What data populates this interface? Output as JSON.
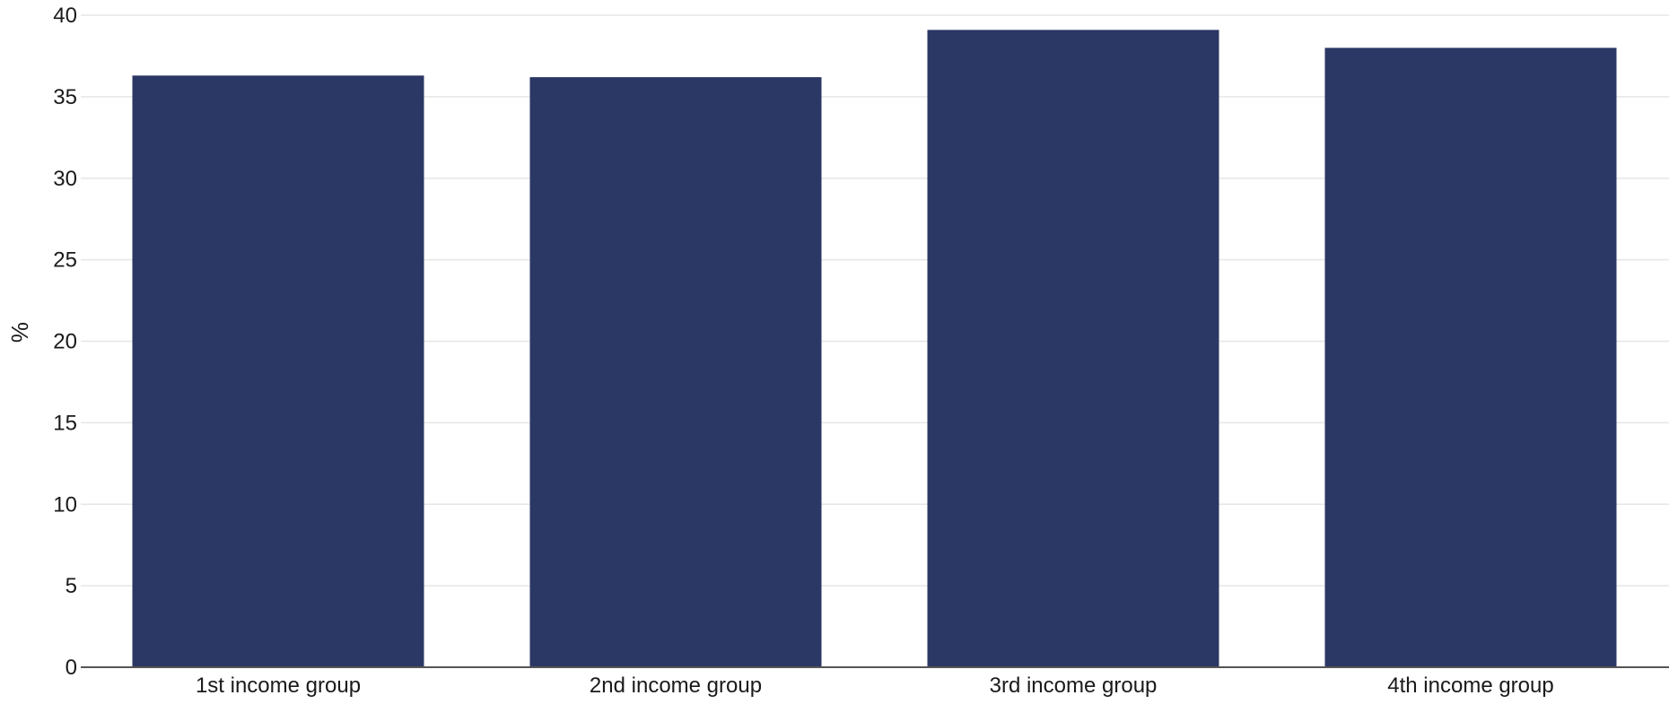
{
  "chart_data": {
    "type": "bar",
    "categories": [
      "1st income group",
      "2nd income group",
      "3rd income group",
      "4th income group"
    ],
    "values": [
      36.3,
      36.2,
      39.1,
      38.0
    ],
    "title": "",
    "xlabel": "",
    "ylabel": "%",
    "ylim": [
      0,
      40
    ],
    "yticks": [
      0,
      5,
      10,
      15,
      20,
      25,
      30,
      35,
      40
    ],
    "grid": true,
    "legend": "none",
    "colors": {
      "bar": "#2b3764",
      "grid": "#e6e6e6",
      "axis": "#555555",
      "text": "#1a1a1a"
    }
  }
}
